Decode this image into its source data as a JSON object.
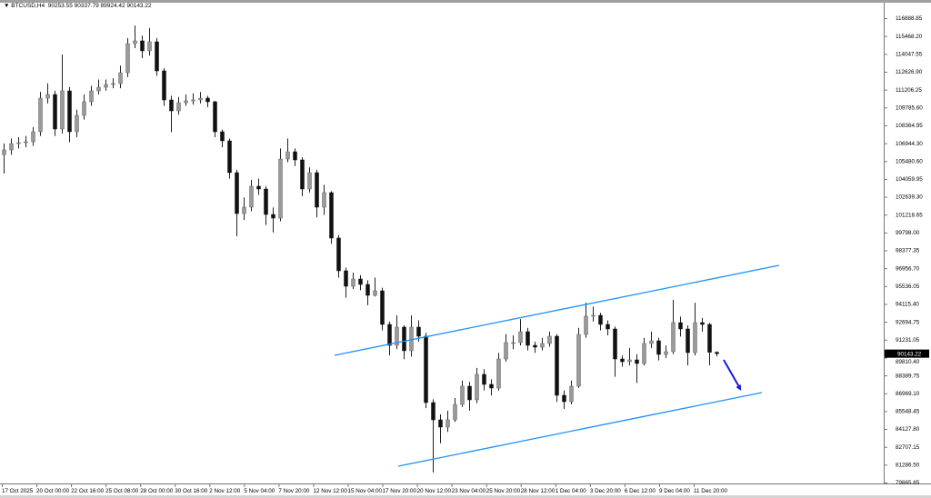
{
  "header": {
    "symbol": "BTCUSD,H4",
    "ohlc": "90253.55 90337.79 89924.42 90143.22",
    "menu_icon": "triangle-down-icon"
  },
  "chart_data": {
    "type": "candlestick",
    "title": "BTCUSD,H4",
    "ylim": [
      79865.85,
      116888.85
    ],
    "grid": false,
    "price_labels": [
      "116888.85",
      "115468.20",
      "114047.55",
      "112626.90",
      "111206.25",
      "109785.60",
      "108364.95",
      "106944.30",
      "105480.60",
      "104059.95",
      "102639.30",
      "101218.65",
      "99798.00",
      "98377.35",
      "96956.70",
      "95536.05",
      "94115.40",
      "92694.75",
      "91231.05",
      "89810.40",
      "88389.75",
      "86969.10",
      "85548.45",
      "84127.80",
      "82707.15",
      "81286.50",
      "79865.85"
    ],
    "time_labels": [
      "17 Oct 2025",
      "20 Oct 00:00",
      "22 Oct 16:00",
      "25 Oct 08:00",
      "28 Oct 00:00",
      "30 Oct 16:00",
      "2 Nov 12:00",
      "5 Nov 04:00",
      "7 Nov 20:00",
      "12 Nov 12:00",
      "15 Nov 04:00",
      "17 Nov 20:00",
      "20 Nov 12:00",
      "23 Nov 04:00",
      "25 Nov 20:00",
      "28 Nov 12:00",
      "1 Dec 04:00",
      "3 Dec 20:00",
      "6 Dec 12:00",
      "9 Dec 04:00",
      "11 Dec 20:00"
    ],
    "current_price": "90143.22",
    "current_price_bg": "#000000",
    "candle_columns": [
      "open",
      "high",
      "low",
      "close"
    ],
    "candles": [
      [
        106000,
        106900,
        104500,
        106384
      ],
      [
        106384,
        107300,
        106000,
        106891
      ],
      [
        106891,
        107400,
        106500,
        106963
      ],
      [
        106963,
        107500,
        106600,
        107036
      ],
      [
        107036,
        108200,
        106700,
        107833
      ],
      [
        107833,
        111000,
        107500,
        110513
      ],
      [
        110513,
        111700,
        110100,
        110803
      ],
      [
        110803,
        111100,
        107500,
        108050
      ],
      [
        108050,
        113991,
        107700,
        111093
      ],
      [
        111093,
        111400,
        107000,
        107833
      ],
      [
        107833,
        109600,
        107400,
        109137
      ],
      [
        109137,
        110800,
        108800,
        110224
      ],
      [
        110224,
        111500,
        109900,
        111093
      ],
      [
        111093,
        112000,
        110800,
        111383
      ],
      [
        111383,
        112000,
        111100,
        111600
      ],
      [
        111600,
        112100,
        111300,
        111673
      ],
      [
        111673,
        113100,
        111300,
        112542
      ],
      [
        112542,
        115300,
        112200,
        114860
      ],
      [
        114860,
        116300,
        114500,
        115078
      ],
      [
        115078,
        115500,
        113700,
        114281
      ],
      [
        114281,
        116100,
        113900,
        115005
      ],
      [
        115005,
        115300,
        112300,
        112687
      ],
      [
        112687,
        112900,
        109900,
        110368
      ],
      [
        110368,
        110700,
        107800,
        109499
      ],
      [
        109499,
        110600,
        109200,
        110151
      ],
      [
        110151,
        110800,
        109900,
        110296
      ],
      [
        110296,
        110900,
        110000,
        110368
      ],
      [
        110368,
        111000,
        110100,
        110513
      ],
      [
        110513,
        110700,
        109800,
        110224
      ],
      [
        110224,
        110300,
        107400,
        107833
      ],
      [
        107833,
        108000,
        106600,
        107108
      ],
      [
        107108,
        107300,
        104100,
        104572
      ],
      [
        104572,
        104800,
        99501,
        101312
      ],
      [
        101312,
        102600,
        100800,
        101819
      ],
      [
        101819,
        104000,
        101500,
        103486
      ],
      [
        103486,
        104100,
        102800,
        103268
      ],
      [
        103268,
        103500,
        100400,
        101240
      ],
      [
        101240,
        101800,
        99800,
        100950
      ],
      [
        100950,
        106500,
        100700,
        105659
      ],
      [
        105659,
        107300,
        105400,
        106239
      ],
      [
        106239,
        106500,
        105100,
        105587
      ],
      [
        105587,
        105800,
        102700,
        103268
      ],
      [
        103268,
        105000,
        103000,
        104572
      ],
      [
        104572,
        104800,
        101000,
        101819
      ],
      [
        101819,
        103600,
        101200,
        102979
      ],
      [
        102979,
        103100,
        98900,
        99356
      ],
      [
        99356,
        99600,
        96200,
        96748
      ],
      [
        96748,
        97000,
        94600,
        95516
      ],
      [
        95516,
        96600,
        95300,
        96096
      ],
      [
        96096,
        96400,
        95200,
        95661
      ],
      [
        95661,
        96000,
        94000,
        94792
      ],
      [
        94792,
        96200,
        94700,
        95154
      ],
      [
        95154,
        95400,
        92000,
        92473
      ],
      [
        92473,
        92700,
        90000,
        90807
      ],
      [
        90807,
        93200,
        90500,
        92256
      ],
      [
        92256,
        92400,
        89700,
        90372
      ],
      [
        90372,
        93200,
        89900,
        92256
      ],
      [
        92256,
        92800,
        91100,
        91531
      ],
      [
        91531,
        91800,
        85800,
        86243
      ],
      [
        86243,
        86500,
        80664,
        84866
      ],
      [
        84866,
        85300,
        83000,
        84286
      ],
      [
        84286,
        85600,
        83900,
        84866
      ],
      [
        84866,
        86600,
        84700,
        86098
      ],
      [
        86098,
        88000,
        85900,
        87547
      ],
      [
        87547,
        87900,
        85600,
        86460
      ],
      [
        86460,
        89000,
        86200,
        88489
      ],
      [
        88489,
        88900,
        87200,
        87692
      ],
      [
        87692,
        88100,
        86800,
        87402
      ],
      [
        87402,
        90200,
        87200,
        89720
      ],
      [
        89720,
        91700,
        89500,
        91024
      ],
      [
        91024,
        91600,
        90500,
        91024
      ],
      [
        91024,
        92900,
        90800,
        91894
      ],
      [
        91894,
        92200,
        90400,
        90807
      ],
      [
        90807,
        91100,
        90200,
        90662
      ],
      [
        90662,
        91400,
        90400,
        90952
      ],
      [
        90952,
        91900,
        90700,
        91531
      ],
      [
        91531,
        91700,
        86300,
        86822
      ],
      [
        86822,
        87200,
        85735,
        86315
      ],
      [
        86315,
        88000,
        86100,
        87547
      ],
      [
        87547,
        92200,
        87400,
        91676
      ],
      [
        91676,
        94212,
        91400,
        93125
      ],
      [
        93125,
        93900,
        92700,
        93198
      ],
      [
        93198,
        93400,
        92000,
        92473
      ],
      [
        92473,
        92800,
        91600,
        92111
      ],
      [
        92111,
        92300,
        88300,
        89720
      ],
      [
        89720,
        90000,
        89100,
        89503
      ],
      [
        89503,
        90600,
        89200,
        89648
      ],
      [
        89648,
        90100,
        87800,
        89358
      ],
      [
        89358,
        91400,
        89200,
        90952
      ],
      [
        90952,
        91900,
        90600,
        91169
      ],
      [
        91169,
        91400,
        89600,
        90082
      ],
      [
        90082,
        90800,
        89800,
        90300
      ],
      [
        90300,
        94429,
        90100,
        92617
      ],
      [
        92617,
        93100,
        91500,
        92111
      ],
      [
        92111,
        92400,
        89200,
        90227
      ],
      [
        90227,
        94200,
        90000,
        92617
      ],
      [
        92617,
        93000,
        91900,
        92473
      ],
      [
        92473,
        92600,
        89200,
        90253.55
      ],
      [
        90253.55,
        90337.79,
        89924.42,
        90143.22
      ]
    ],
    "annotations": {
      "channel_color": "#1e90ff",
      "arrow_color": "#1a1adb",
      "upper_channel": {
        "from": {
          "candle": 45.5,
          "price": 90011
        },
        "to": {
          "candle": 106.6,
          "price": 97183
        }
      },
      "lower_channel": {
        "from": {
          "candle": 54.25,
          "price": 81171
        },
        "to": {
          "candle": 104.25,
          "price": 87040
        }
      },
      "arrow": {
        "from": {
          "candle": 99,
          "price": 89648
        },
        "to": {
          "candle": 101.4,
          "price": 87184
        }
      }
    }
  }
}
